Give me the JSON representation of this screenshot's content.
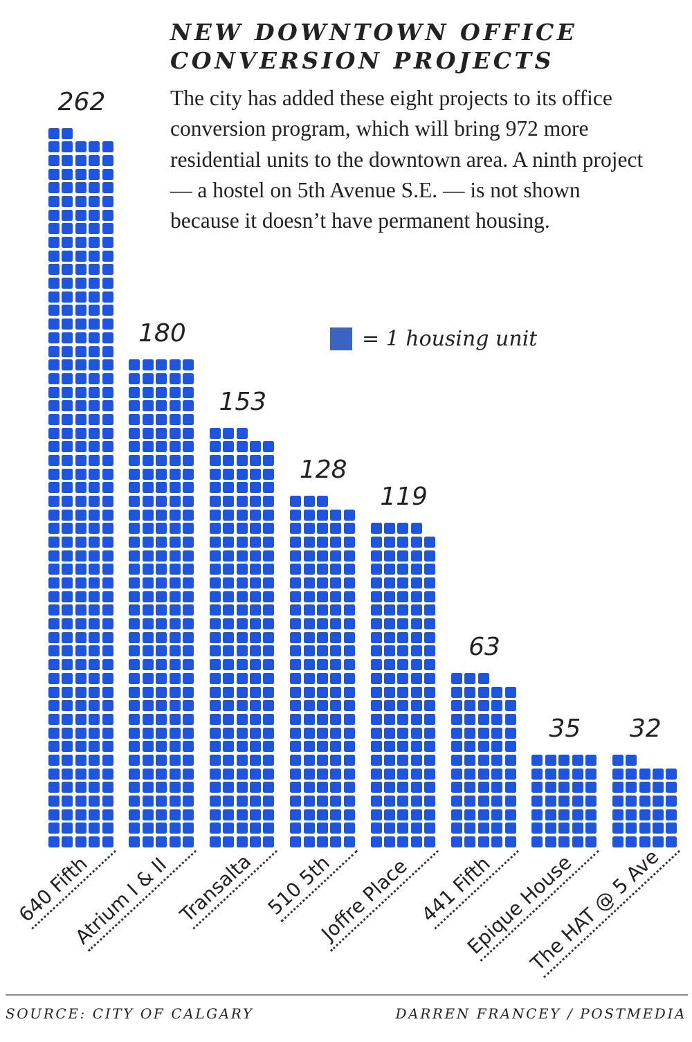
{
  "title": "NEW DOWNTOWN OFFICE CONVERSION PROJECTS",
  "description": "The city has added these eight projects to its office conversion program, which will bring 972 more residential units to the downtown area. A ninth project — a hostel on 5th Avenue S.E. — is not shown because it doesn’t have permanent housing.",
  "legend": {
    "label": "= 1 housing unit",
    "color": "#3a63c4"
  },
  "footer": {
    "source": "SOURCE: CITY OF CALGARY",
    "credit": "DARREN FRANCEY / POSTMEDIA"
  },
  "chart_data": {
    "type": "waffle",
    "units_per_row": 5,
    "unit_color": "#1e55dc",
    "categories": [
      "640 Fifth",
      "Atrium I & II",
      "Transalta",
      "510 5th",
      "Joffre Place",
      "441 Fifth",
      "Epique House",
      "The HAT @ 5 Ave"
    ],
    "values": [
      262,
      180,
      153,
      128,
      119,
      63,
      35,
      32
    ],
    "value_labels": [
      "262",
      "180",
      "153",
      "128",
      "119",
      "63",
      "35",
      "32"
    ]
  }
}
